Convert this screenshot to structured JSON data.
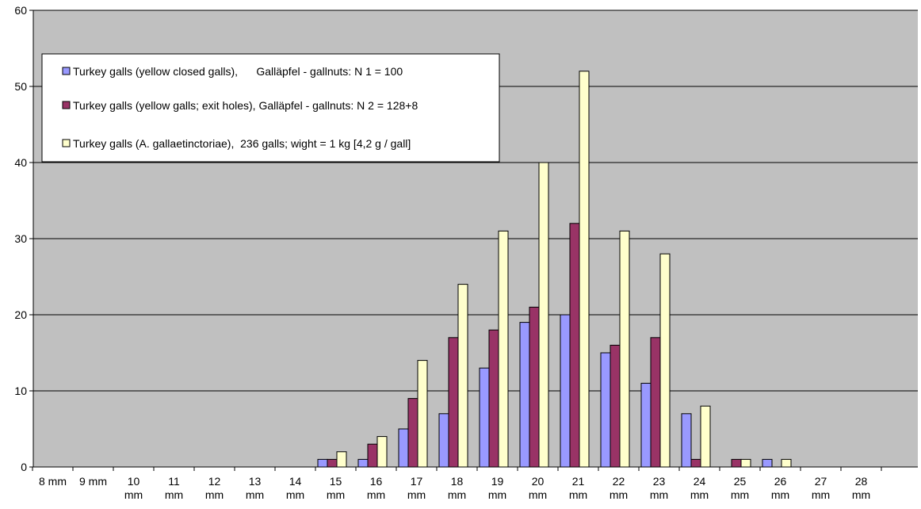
{
  "chart_data": {
    "type": "bar",
    "title": "",
    "xlabel": "",
    "ylabel": "",
    "ylim": [
      0,
      60
    ],
    "yticks": [
      0,
      10,
      20,
      30,
      40,
      50,
      60
    ],
    "grid": true,
    "legend_position": "top-left",
    "plot_background": "#c0c0c0",
    "categories": [
      [
        "8 mm"
      ],
      [
        "9 mm"
      ],
      [
        "10",
        "mm"
      ],
      [
        "11",
        "mm"
      ],
      [
        "12",
        "mm"
      ],
      [
        "13",
        "mm"
      ],
      [
        "14",
        "mm"
      ],
      [
        "15",
        "mm"
      ],
      [
        "16",
        "mm"
      ],
      [
        "17",
        "mm"
      ],
      [
        "18",
        "mm"
      ],
      [
        "19",
        "mm"
      ],
      [
        "20",
        "mm"
      ],
      [
        "21",
        "mm"
      ],
      [
        "22",
        "mm"
      ],
      [
        "23",
        "mm"
      ],
      [
        "24",
        "mm"
      ],
      [
        "25",
        "mm"
      ],
      [
        "26",
        "mm"
      ],
      [
        "27",
        "mm"
      ],
      [
        "28",
        "mm"
      ]
    ],
    "series": [
      {
        "name": "Turkey galls (yellow closed galls),      Galläpfel - gallnuts: N 1 = 100",
        "color": "#9999ff",
        "values": [
          0,
          0,
          0,
          0,
          0,
          0,
          0,
          1,
          1,
          5,
          7,
          13,
          19,
          20,
          15,
          11,
          7,
          0,
          1,
          0,
          0
        ]
      },
      {
        "name": "Turkey galls (yellow galls; exit holes), Galläpfel - gallnuts: N 2 = 128+8",
        "color": "#993366",
        "values": [
          0,
          0,
          0,
          0,
          0,
          0,
          0,
          1,
          3,
          9,
          17,
          18,
          21,
          32,
          16,
          17,
          1,
          1,
          0,
          0,
          0
        ]
      },
      {
        "name": "Turkey galls (A. gallaetinctoriae),  236 galls; wight = 1 kg [4,2 g / gall]",
        "color": "#ffffcc",
        "values": [
          0,
          0,
          0,
          0,
          0,
          0,
          0,
          2,
          4,
          14,
          24,
          31,
          40,
          52,
          31,
          28,
          8,
          1,
          1,
          0,
          0
        ]
      }
    ]
  }
}
